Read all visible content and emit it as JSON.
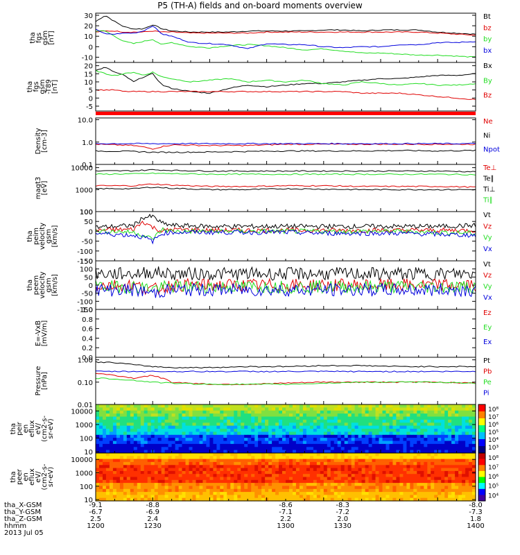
{
  "title": "P5 (TH-A) fields and on-board moments overview",
  "colors": {
    "black": "#000000",
    "red": "#e00000",
    "green": "#22dd22",
    "blue": "#0000dd"
  },
  "chart_data": [
    {
      "type": "line",
      "ylabel": [
        "tha",
        "fgs",
        "gsm",
        "[nT]"
      ],
      "yticks": [
        "30",
        "20",
        "10",
        "0",
        "-10"
      ],
      "ylim": [
        -15,
        32
      ],
      "legend": [
        {
          "name": "Bt",
          "color": "black"
        },
        {
          "name": "bz",
          "color": "red"
        },
        {
          "name": "by",
          "color": "green"
        },
        {
          "name": "bx",
          "color": "blue"
        }
      ],
      "x": [
        1200,
        1205,
        1210,
        1215,
        1220,
        1225,
        1230,
        1235,
        1240,
        1250,
        1260,
        1270,
        1280,
        1290,
        1300,
        1310,
        1320,
        1330,
        1340,
        1350,
        1360,
        1370,
        1380,
        1390,
        1400
      ],
      "series": [
        {
          "name": "Bt",
          "values": [
            24,
            30,
            24,
            19,
            17,
            17,
            21,
            17,
            15,
            14,
            14,
            14,
            15,
            15,
            15,
            15,
            16,
            16,
            15,
            16,
            16,
            16,
            14,
            13,
            12
          ]
        },
        {
          "name": "bz",
          "values": [
            14,
            15,
            15,
            14,
            14,
            14,
            15,
            14,
            14,
            13,
            13,
            13,
            13,
            14,
            14,
            14,
            14,
            14,
            14,
            14,
            14,
            14,
            13,
            12,
            11
          ]
        },
        {
          "name": "by",
          "values": [
            15,
            15,
            10,
            5,
            3,
            5,
            7,
            2,
            4,
            0,
            -1,
            1,
            2,
            1,
            -1,
            -3,
            -2,
            -4,
            -6,
            -6,
            -7,
            -8,
            -8,
            -9,
            -10
          ]
        },
        {
          "name": "bx",
          "values": [
            17,
            12,
            12,
            13,
            13,
            15,
            20,
            12,
            10,
            4,
            3,
            2,
            -2,
            3,
            2,
            2,
            0,
            -1,
            0,
            0,
            2,
            2,
            4,
            4,
            5
          ]
        }
      ]
    },
    {
      "type": "line",
      "ylabel": [
        "tha",
        "fgs",
        "gsm",
        "-T89",
        "[nT]"
      ],
      "yticks": [
        "20",
        "15",
        "10",
        "5",
        "0",
        "-5"
      ],
      "ylim": [
        -8,
        22
      ],
      "legend": [
        {
          "name": "Bx",
          "color": "black"
        },
        {
          "name": "By",
          "color": "green"
        },
        {
          "name": "Bz",
          "color": "red"
        }
      ],
      "x": [
        1200,
        1205,
        1210,
        1215,
        1220,
        1225,
        1230,
        1235,
        1240,
        1250,
        1260,
        1270,
        1280,
        1290,
        1300,
        1310,
        1320,
        1330,
        1340,
        1350,
        1360,
        1370,
        1380,
        1390,
        1400
      ],
      "series": [
        {
          "name": "Bx",
          "values": [
            17,
            19,
            16,
            14,
            10,
            13,
            15,
            8,
            6,
            4,
            3,
            6,
            8,
            7,
            8,
            9,
            9,
            10,
            11,
            12,
            12,
            13,
            14,
            14,
            15
          ]
        },
        {
          "name": "By",
          "values": [
            17,
            15,
            14,
            15,
            16,
            14,
            16,
            13,
            12,
            10,
            11,
            12,
            10,
            11,
            10,
            11,
            9,
            8,
            10,
            9,
            8,
            9,
            8,
            8,
            9
          ]
        },
        {
          "name": "Bz",
          "values": [
            5,
            5,
            5,
            4,
            4,
            4,
            4,
            4,
            4,
            4,
            4,
            4,
            4,
            4,
            4,
            4,
            4,
            4,
            3,
            3,
            3,
            2,
            1,
            0,
            -1
          ]
        }
      ]
    },
    {
      "type": "line",
      "ylabel": [
        "Density",
        "[cm-3]"
      ],
      "yticks": [
        "10.0",
        "1.0",
        "0.1"
      ],
      "ylim": [
        0.1,
        12
      ],
      "log": true,
      "legend": [
        {
          "name": "Ne",
          "color": "red"
        },
        {
          "name": "Ni",
          "color": "black"
        },
        {
          "name": "Npot",
          "color": "blue"
        }
      ],
      "x": [
        1200,
        1220,
        1230,
        1240,
        1260,
        1280,
        1300,
        1320,
        1340,
        1360,
        1380,
        1400
      ],
      "series": [
        {
          "name": "Ne",
          "values": [
            0.8,
            0.7,
            0.5,
            0.75,
            0.7,
            0.7,
            0.8,
            0.8,
            0.8,
            0.8,
            0.8,
            0.8
          ]
        },
        {
          "name": "Ni",
          "values": [
            0.4,
            0.38,
            0.35,
            0.35,
            0.36,
            0.38,
            0.4,
            0.4,
            0.4,
            0.42,
            0.4,
            0.42
          ]
        },
        {
          "name": "Npot",
          "values": [
            0.85,
            0.85,
            0.85,
            0.85,
            0.85,
            0.85,
            0.85,
            0.85,
            0.85,
            0.85,
            0.85,
            0.85
          ]
        }
      ]
    },
    {
      "type": "line",
      "ylabel": [
        "magt3",
        "[eV]"
      ],
      "yticks": [
        "10000",
        "1000",
        "100"
      ],
      "ylim": [
        100,
        14000
      ],
      "log": true,
      "legend": [
        {
          "name": "Te⊥",
          "color": "red"
        },
        {
          "name": "Te∥",
          "color": "black"
        },
        {
          "name": "Ti⊥",
          "color": "black"
        },
        {
          "name": "Ti∥",
          "color": "green"
        }
      ],
      "x": [
        1200,
        1220,
        1230,
        1240,
        1260,
        1280,
        1300,
        1320,
        1340,
        1360,
        1380,
        1400
      ],
      "series": [
        {
          "name": "Te⊥",
          "values": [
            1500,
            1500,
            1800,
            1600,
            1400,
            1400,
            1500,
            1500,
            1400,
            1400,
            1400,
            1300
          ]
        },
        {
          "name": "Te∥",
          "values": [
            1100,
            1100,
            1300,
            1150,
            1000,
            1000,
            1100,
            1050,
            1000,
            1000,
            1000,
            1000
          ]
        },
        {
          "name": "Ti⊥",
          "values": [
            7000,
            7200,
            8000,
            7500,
            7000,
            7000,
            7000,
            7000,
            7000,
            7000,
            7000,
            6500
          ]
        },
        {
          "name": "Ti∥",
          "values": [
            5000,
            5200,
            5500,
            5300,
            5000,
            5000,
            5000,
            5000,
            5000,
            5000,
            5000,
            4800
          ]
        }
      ]
    },
    {
      "type": "line",
      "ylabel": [
        "tha",
        "peim",
        "velocity",
        "gsm",
        "[km/s]"
      ],
      "yticks": [
        "100",
        "50",
        "0",
        "-50",
        "-100",
        "-150"
      ],
      "ylim": [
        -150,
        100
      ],
      "legend": [
        {
          "name": "Vt",
          "color": "black"
        },
        {
          "name": "Vz",
          "color": "red"
        },
        {
          "name": "Vy",
          "color": "green"
        },
        {
          "name": "Vx",
          "color": "blue"
        }
      ],
      "x": [
        1200,
        1210,
        1220,
        1225,
        1230,
        1235,
        1240,
        1260,
        1280,
        1300,
        1320,
        1340,
        1360,
        1380,
        1400
      ],
      "series": [
        {
          "name": "Vt",
          "values": [
            20,
            25,
            30,
            70,
            75,
            40,
            30,
            25,
            25,
            25,
            25,
            25,
            25,
            25,
            30
          ]
        },
        {
          "name": "Vz",
          "values": [
            5,
            8,
            10,
            50,
            20,
            0,
            10,
            5,
            5,
            5,
            5,
            5,
            5,
            5,
            5
          ]
        },
        {
          "name": "Vy",
          "values": [
            0,
            0,
            -5,
            -20,
            -40,
            10,
            0,
            0,
            0,
            0,
            0,
            0,
            0,
            -5,
            -10
          ]
        },
        {
          "name": "Vx",
          "values": [
            -10,
            -15,
            -20,
            -30,
            -50,
            -10,
            -5,
            -5,
            -5,
            -5,
            -10,
            -10,
            -10,
            -15,
            -20
          ]
        }
      ]
    },
    {
      "type": "line",
      "ylabel": [
        "tha",
        "peem",
        "velocity",
        "gsm",
        "[km/s]"
      ],
      "yticks": [
        "150",
        "100",
        "50",
        "0",
        "-50",
        "-100",
        "-150"
      ],
      "ylim": [
        -150,
        150
      ],
      "legend": [
        {
          "name": "Vt",
          "color": "black"
        },
        {
          "name": "Vz",
          "color": "red"
        },
        {
          "name": "Vy",
          "color": "green"
        },
        {
          "name": "Vx",
          "color": "blue"
        }
      ],
      "x": [
        1200,
        1210,
        1220,
        1230,
        1240,
        1260,
        1280,
        1300,
        1320,
        1340,
        1360,
        1380,
        1400
      ],
      "series": [
        {
          "name": "Vt",
          "values": [
            70,
            70,
            70,
            80,
            70,
            70,
            70,
            70,
            70,
            70,
            70,
            70,
            70
          ]
        },
        {
          "name": "Vz",
          "values": [
            0,
            0,
            0,
            -30,
            0,
            0,
            0,
            0,
            0,
            0,
            0,
            0,
            0
          ]
        },
        {
          "name": "Vy",
          "values": [
            -10,
            -10,
            -10,
            -20,
            -10,
            -10,
            -10,
            -10,
            -10,
            -10,
            -10,
            -10,
            -10
          ]
        },
        {
          "name": "Vx",
          "values": [
            -30,
            -30,
            -30,
            -50,
            -30,
            -30,
            -30,
            -30,
            -30,
            -30,
            -30,
            -30,
            -30
          ]
        }
      ]
    },
    {
      "type": "line",
      "ylabel": [
        "E=-VxB",
        "[mV/m]"
      ],
      "yticks": [
        "1.0",
        "0.8",
        "0.6",
        "0.4",
        "0.2",
        "0.0"
      ],
      "ylim": [
        0,
        1
      ],
      "legend": [
        {
          "name": "Ez",
          "color": "red"
        },
        {
          "name": "Ey",
          "color": "green"
        },
        {
          "name": "Ex",
          "color": "blue"
        }
      ],
      "x": [],
      "series": []
    },
    {
      "type": "line",
      "ylabel": [
        "Pressure",
        "[nPa]"
      ],
      "yticks": [
        "1.00",
        "0.10",
        "0.01"
      ],
      "ylim": [
        0.01,
        1.3
      ],
      "log": true,
      "legend": [
        {
          "name": "Pt",
          "color": "black"
        },
        {
          "name": "Pb",
          "color": "red"
        },
        {
          "name": "Pe",
          "color": "green"
        },
        {
          "name": "Pi",
          "color": "blue"
        }
      ],
      "x": [
        1200,
        1210,
        1220,
        1230,
        1240,
        1260,
        1280,
        1300,
        1320,
        1340,
        1360,
        1380,
        1400
      ],
      "series": [
        {
          "name": "Pt",
          "values": [
            0.8,
            0.75,
            0.6,
            0.5,
            0.45,
            0.45,
            0.5,
            0.5,
            0.55,
            0.55,
            0.5,
            0.5,
            0.5
          ]
        },
        {
          "name": "Pb",
          "values": [
            0.25,
            0.2,
            0.15,
            0.2,
            0.1,
            0.08,
            0.08,
            0.09,
            0.1,
            0.1,
            0.1,
            0.1,
            0.09
          ]
        },
        {
          "name": "Pe",
          "values": [
            0.15,
            0.14,
            0.12,
            0.1,
            0.09,
            0.08,
            0.08,
            0.08,
            0.09,
            0.1,
            0.1,
            0.1,
            0.09
          ]
        },
        {
          "name": "Pi",
          "values": [
            0.3,
            0.3,
            0.3,
            0.3,
            0.3,
            0.3,
            0.3,
            0.3,
            0.3,
            0.3,
            0.3,
            0.3,
            0.3
          ]
        }
      ]
    },
    {
      "type": "heatmap",
      "ylabel": [
        "tha",
        "peir",
        "en",
        "eflux",
        "eV/",
        "(cm2-s-",
        "sr-eV)"
      ],
      "yticks": [
        "10000",
        "1000",
        "100",
        "10"
      ],
      "ylim": [
        8,
        30000
      ],
      "log": true,
      "colorbar": {
        "labels": [
          "10⁸",
          "10⁷",
          "10⁶",
          "10⁵",
          "10⁴",
          "10³"
        ]
      }
    },
    {
      "type": "heatmap",
      "ylabel": [
        "tha",
        "peer",
        "en",
        "eflux",
        "eV/",
        "(cm2-s-",
        "sr-eV)"
      ],
      "yticks": [
        "10000",
        "1000",
        "100",
        "10"
      ],
      "ylim": [
        8,
        30000
      ],
      "log": true,
      "colorbar": {
        "labels": [
          "10⁸",
          "10⁷",
          "10⁶",
          "10⁵",
          "10⁴"
        ]
      }
    }
  ],
  "footer": {
    "labels": [
      "tha_X-GSM",
      "tha_Y-GSM",
      "tha_Z-GSM",
      "hhmm",
      "2013 Jul 05"
    ],
    "columns": [
      {
        "x": 1200,
        "vals": [
          "-9.1",
          "-6.7",
          "2.5",
          "1200"
        ]
      },
      {
        "x": 1230,
        "vals": [
          "-8.8",
          "-6.9",
          "2.4",
          "1230"
        ]
      },
      {
        "x": 1300,
        "vals": [
          "-8.6",
          "-7.1",
          "2.2",
          "1300"
        ]
      },
      {
        "x": 1330,
        "vals": [
          "-8.3",
          "-7.2",
          "2.0",
          "1330"
        ]
      },
      {
        "x": 1400,
        "vals": [
          "-8.0",
          "-7.3",
          "1.8",
          "1400"
        ]
      }
    ]
  }
}
